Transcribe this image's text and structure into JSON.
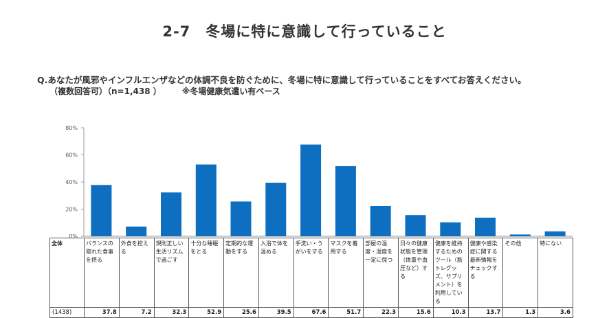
{
  "header": {
    "title": "2-7　冬場に特に意識して行っていること",
    "question": "Q.あなたが風邪やインフルエンザなどの体調不良を防ぐために、冬場に特に意識して行っていることをすべてお答えください。",
    "note_multi": "（複数回答可）（n=1,438 ）",
    "note_base": "※冬場健康気遣い有ベース"
  },
  "chart_data": {
    "type": "bar",
    "title": "",
    "xlabel": "",
    "ylabel": "",
    "ylim": [
      0,
      80
    ],
    "yticks": [
      0,
      20,
      40,
      60,
      80
    ],
    "ytick_labels": [
      "0%",
      "20%",
      "40%",
      "60%",
      "80%"
    ],
    "bar_color": "#0e6fc1",
    "categories": [
      "バランスの取れた食事を摂る",
      "外食を控える",
      "規則正しい生活リズムで過ごす",
      "十分な睡眠をとる",
      "定期的な運動をする",
      "入浴で体を温める",
      "手洗い・うがいをする",
      "マスクを着用する",
      "部屋の温度・湿度を一定に保つ",
      "日々の健康状態を管理（体重や血圧など）する",
      "健康を維持するためのツール（筋トレグッズ、サプリメント）を利用している",
      "健康や感染症に関する最新情報をチェックする",
      "その他",
      "特にない"
    ],
    "values": [
      37.8,
      7.2,
      32.3,
      52.9,
      25.6,
      39.5,
      67.6,
      51.7,
      22.3,
      15.6,
      10.3,
      13.7,
      1.3,
      3.6
    ],
    "value_labels": [
      "37.8",
      "7.2",
      "32.3",
      "52.9",
      "25.6",
      "39.5",
      "67.6",
      "51.7",
      "22.3",
      "15.6",
      "10.3",
      "13.7",
      "1.3",
      "3.6"
    ]
  },
  "table": {
    "row_header": "全体",
    "n_label": "(1438)"
  }
}
